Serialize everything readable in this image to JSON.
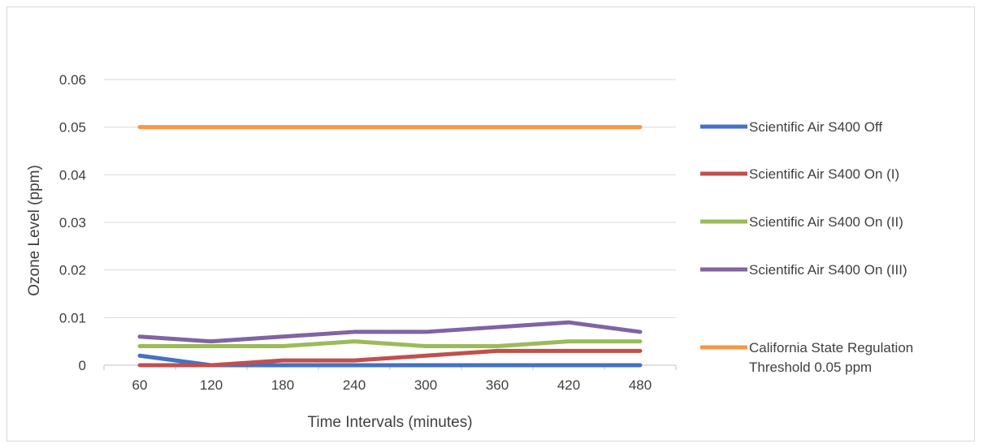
{
  "chart_data": {
    "type": "line",
    "title": "",
    "xlabel": "Time Intervals (minutes)",
    "ylabel": "Ozone Level (ppm)",
    "categories": [
      "60",
      "120",
      "180",
      "240",
      "300",
      "360",
      "420",
      "480"
    ],
    "ylim": [
      0,
      0.06
    ],
    "yticks": [
      "0",
      "0.01",
      "0.02",
      "0.03",
      "0.04",
      "0.05",
      "0.06"
    ],
    "grid": true,
    "legend_position": "right",
    "series": [
      {
        "name": "Scientific Air S400 Off",
        "color": "#4472C4",
        "values": [
          0.002,
          0,
          0,
          0,
          0,
          0,
          0,
          0
        ]
      },
      {
        "name": "Scientific Air S400 On (I)",
        "color": "#C0504D",
        "values": [
          0,
          0,
          0.001,
          0.001,
          0.002,
          0.003,
          0.003,
          0.003
        ]
      },
      {
        "name": "Scientific Air S400 On (II)",
        "color": "#9BBB59",
        "values": [
          0.004,
          0.004,
          0.004,
          0.005,
          0.004,
          0.004,
          0.005,
          0.005
        ]
      },
      {
        "name": "Scientific Air S400 On (III)",
        "color": "#8064A2",
        "values": [
          0.006,
          0.005,
          0.006,
          0.007,
          0.007,
          0.008,
          0.009,
          0.007
        ]
      },
      {
        "name": "California State Regulation Threshold 0.05 ppm",
        "legend_lines": [
          "California State Regulation",
          "Threshold 0.05 ppm"
        ],
        "color": "#F79646",
        "values": [
          0.05,
          0.05,
          0.05,
          0.05,
          0.05,
          0.05,
          0.05,
          0.05
        ]
      }
    ]
  }
}
